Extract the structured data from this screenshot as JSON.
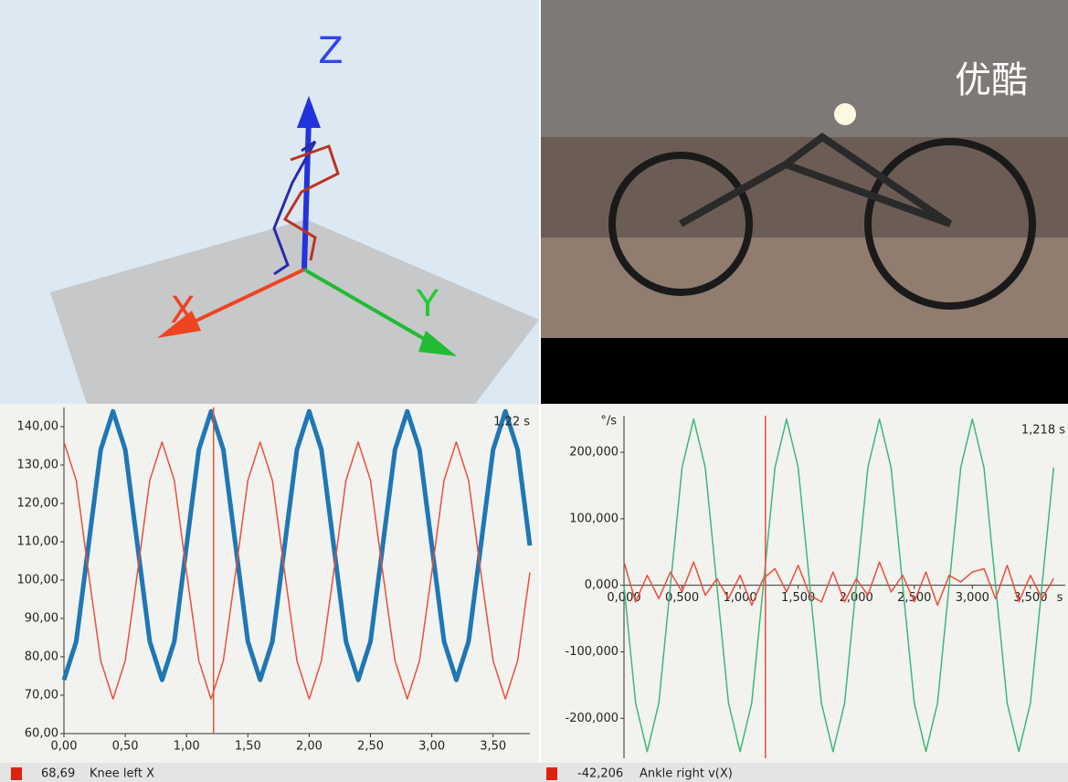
{
  "scene_3d": {
    "axis_labels": [
      "Z",
      "X",
      "Y"
    ]
  },
  "video": {
    "watermark": "优酷"
  },
  "chart_data": [
    {
      "type": "line",
      "x": [
        0,
        0.1,
        0.2,
        0.3,
        0.4,
        0.5,
        0.6,
        0.7,
        0.8,
        0.9,
        1.0,
        1.1,
        1.2,
        1.3,
        1.4,
        1.5,
        1.6,
        1.7,
        1.8,
        1.9,
        2.0,
        2.1,
        2.2,
        2.3,
        2.4,
        2.5,
        2.6,
        2.7,
        2.8,
        2.9,
        3.0,
        3.1,
        3.2,
        3.3,
        3.4,
        3.5,
        3.6,
        3.7,
        3.8
      ],
      "series": [
        {
          "color": "#1f77b4",
          "width": 5,
          "values": [
            74,
            84,
            109,
            134,
            144,
            134,
            109,
            84,
            74,
            84,
            109,
            134,
            144,
            134,
            109,
            84,
            74,
            84,
            109,
            134,
            144,
            134,
            109,
            84,
            74,
            84,
            109,
            134,
            144,
            134,
            109,
            84,
            74,
            84,
            109,
            134,
            144,
            134,
            109
          ]
        },
        {
          "color": "#e8503a",
          "width": 1.5,
          "values": [
            136,
            126,
            102,
            79,
            69,
            79,
            102,
            126,
            136,
            126,
            102,
            79,
            69,
            79,
            102,
            126,
            136,
            126,
            102,
            79,
            69,
            79,
            102,
            126,
            136,
            126,
            102,
            79,
            69,
            79,
            102,
            126,
            136,
            126,
            102,
            79,
            69,
            79,
            102
          ]
        }
      ],
      "xlim": [
        0,
        3.8
      ],
      "ylim": [
        60,
        145
      ],
      "xticks": [
        {
          "value": 0,
          "label": "0,00"
        },
        {
          "value": 0.5,
          "label": "0,50"
        },
        {
          "value": 1,
          "label": "1,00"
        },
        {
          "value": 1.5,
          "label": "1,50"
        },
        {
          "value": 2,
          "label": "2,00"
        },
        {
          "value": 2.5,
          "label": "2,50"
        },
        {
          "value": 3,
          "label": "3,00"
        },
        {
          "value": 3.5,
          "label": "3,50"
        }
      ],
      "yticks": [
        {
          "value": 60,
          "label": "60,00"
        },
        {
          "value": 70,
          "label": "70,00"
        },
        {
          "value": 80,
          "label": "80,00"
        },
        {
          "value": 90,
          "label": "90,00"
        },
        {
          "value": 100,
          "label": "100,00"
        },
        {
          "value": 110,
          "label": "110,00"
        },
        {
          "value": 120,
          "label": "120,00"
        },
        {
          "value": 130,
          "label": "130,00"
        },
        {
          "value": 140,
          "label": "140,00"
        }
      ],
      "cursor": {
        "x": 1.22,
        "label": "1,22 s",
        "color": "#e8503a"
      }
    },
    {
      "type": "line",
      "y_label": "°/s",
      "x_unit": "s",
      "x": [
        0,
        0.1,
        0.2,
        0.3,
        0.4,
        0.5,
        0.6,
        0.7,
        0.8,
        0.9,
        1.0,
        1.1,
        1.2,
        1.3,
        1.4,
        1.5,
        1.6,
        1.7,
        1.8,
        1.9,
        2.0,
        2.1,
        2.2,
        2.3,
        2.4,
        2.5,
        2.6,
        2.7,
        2.8,
        2.9,
        3.0,
        3.1,
        3.2,
        3.3,
        3.4,
        3.5,
        3.6,
        3.7
      ],
      "series": [
        {
          "color": "#3cb878",
          "width": 1.5,
          "values": [
            0,
            -177,
            -250,
            -177,
            0,
            177,
            250,
            177,
            0,
            -177,
            -250,
            -177,
            0,
            177,
            250,
            177,
            0,
            -177,
            -250,
            -177,
            0,
            177,
            250,
            177,
            0,
            -177,
            -250,
            -177,
            0,
            177,
            250,
            177,
            0,
            -177,
            -250,
            -177,
            0,
            177
          ]
        },
        {
          "color": "#e8503a",
          "width": 1.5,
          "values": [
            35,
            -25,
            15,
            -20,
            20,
            -10,
            35,
            -15,
            10,
            -20,
            15,
            -30,
            10,
            25,
            -10,
            30,
            -15,
            -25,
            20,
            -25,
            10,
            -15,
            35,
            -10,
            15,
            -25,
            20,
            -30,
            15,
            5,
            20,
            25,
            -20,
            30,
            -25,
            15,
            -20,
            10
          ]
        }
      ],
      "xlim": [
        0,
        3.8
      ],
      "ylim": [
        -260,
        255
      ],
      "xticks": [
        {
          "value": 0,
          "label": "0,000"
        },
        {
          "value": 0.5,
          "label": "0,500"
        },
        {
          "value": 1,
          "label": "1,000"
        },
        {
          "value": 1.5,
          "label": "1,500"
        },
        {
          "value": 2,
          "label": "2,000"
        },
        {
          "value": 2.5,
          "label": "2,500"
        },
        {
          "value": 3,
          "label": "3,000"
        },
        {
          "value": 3.5,
          "label": "3,500"
        }
      ],
      "yticks": [
        {
          "value": -200,
          "label": "-200,000"
        },
        {
          "value": -100,
          "label": "-100,000"
        },
        {
          "value": 0,
          "label": "0,000"
        },
        {
          "value": 100,
          "label": "100,000"
        },
        {
          "value": 200,
          "label": "200,000"
        }
      ],
      "cursor": {
        "x": 1.218,
        "label": "1,218 s",
        "color": "#e8503a"
      }
    }
  ],
  "status": [
    {
      "value_text": "68,69",
      "name": "Knee left X"
    },
    {
      "value_text": "-42,206",
      "name": "Ankle right v(X)"
    }
  ]
}
